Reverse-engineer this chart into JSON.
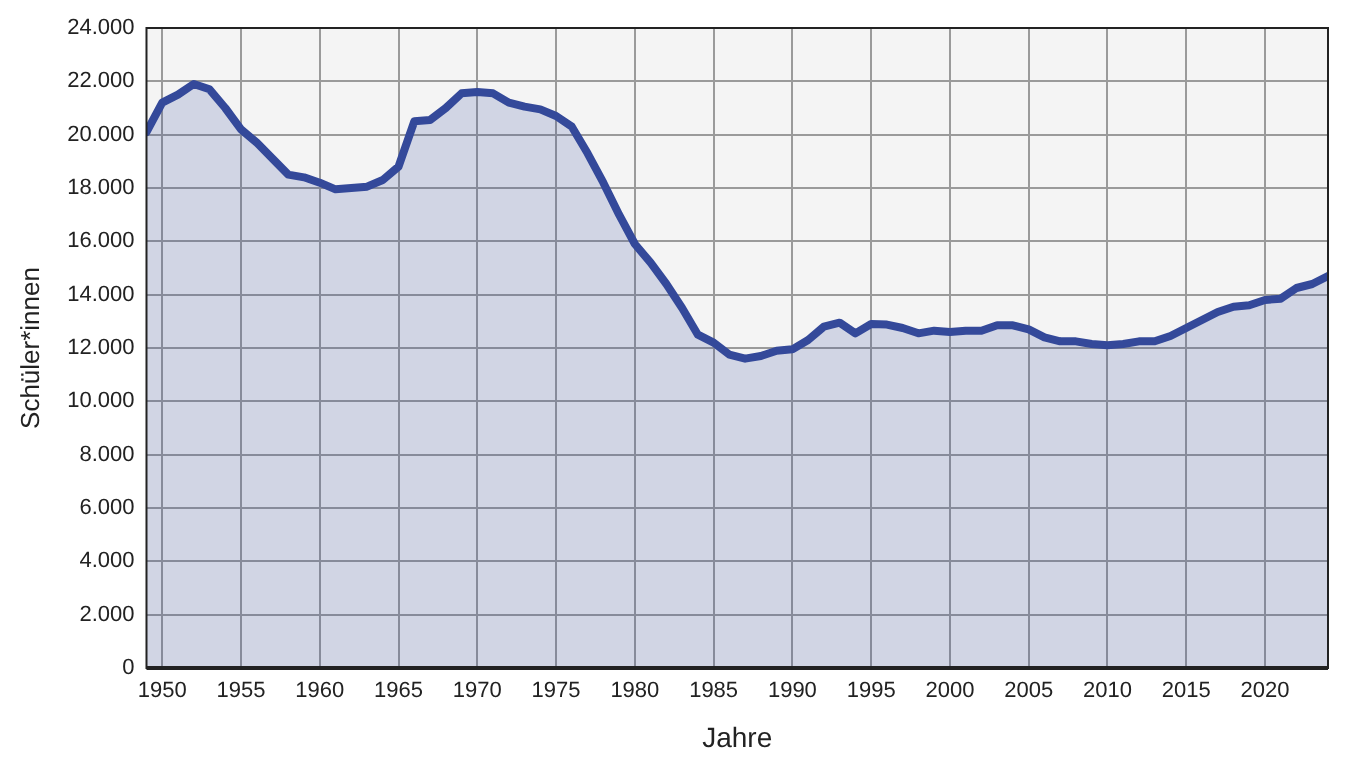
{
  "chart_data": {
    "type": "area",
    "xlabel": "Jahre",
    "ylabel": "Schüler*innen",
    "x": [
      1949,
      1950,
      1951,
      1952,
      1953,
      1954,
      1955,
      1956,
      1957,
      1958,
      1959,
      1960,
      1961,
      1962,
      1963,
      1964,
      1965,
      1966,
      1967,
      1968,
      1969,
      1970,
      1971,
      1972,
      1973,
      1974,
      1975,
      1976,
      1977,
      1978,
      1979,
      1980,
      1981,
      1982,
      1983,
      1984,
      1985,
      1986,
      1987,
      1988,
      1989,
      1990,
      1991,
      1992,
      1993,
      1994,
      1995,
      1996,
      1997,
      1998,
      1999,
      2000,
      2001,
      2002,
      2003,
      2004,
      2005,
      2006,
      2007,
      2008,
      2009,
      2010,
      2011,
      2012,
      2013,
      2014,
      2015,
      2016,
      2017,
      2018,
      2019,
      2020,
      2021,
      2022,
      2023,
      2024
    ],
    "series": [
      {
        "color": "#34499a",
        "values": [
          20100,
          21200,
          21500,
          21900,
          21700,
          21000,
          20200,
          19700,
          19100,
          18500,
          18400,
          18200,
          17950,
          18000,
          18050,
          18300,
          18800,
          20500,
          20550,
          21000,
          21550,
          21600,
          21550,
          21200,
          21050,
          20950,
          20700,
          20300,
          19300,
          18200,
          17000,
          15900,
          15200,
          14400,
          13500,
          12500,
          12200,
          11750,
          11600,
          11700,
          11900,
          11950,
          12300,
          12800,
          12950,
          12550,
          12900,
          12880,
          12750,
          12550,
          12650,
          12600,
          12650,
          12650,
          12850,
          12850,
          12700,
          12400,
          12250,
          12250,
          12150,
          12100,
          12150,
          12250,
          12250,
          12450,
          12750,
          13050,
          13350,
          13550,
          13600,
          13800,
          13850,
          14250,
          14400,
          14700
        ]
      }
    ],
    "xlim": [
      1949,
      2024
    ],
    "xticks": [
      1950,
      1955,
      1960,
      1965,
      1970,
      1975,
      1980,
      1985,
      1990,
      1995,
      2000,
      2005,
      2010,
      2015,
      2020
    ],
    "ylim": [
      0,
      24000
    ],
    "yticks": [
      0,
      {
        "value": 2000,
        "label": "2.000"
      },
      {
        "value": 4000,
        "label": "4.000"
      },
      {
        "value": 6000,
        "label": "6.000"
      },
      {
        "value": 8000,
        "label": "8.000"
      },
      {
        "value": 10000,
        "label": "10.000"
      },
      {
        "value": 12000,
        "label": "12.000"
      },
      {
        "value": 14000,
        "label": "14.000"
      },
      {
        "value": 16000,
        "label": "16.000"
      },
      {
        "value": 18000,
        "label": "18.000"
      },
      {
        "value": 20000,
        "label": "20.000"
      },
      {
        "value": 22000,
        "label": "22.000"
      },
      {
        "value": 24000,
        "label": "24.000"
      }
    ],
    "grid": true,
    "legend": false,
    "marker": "none",
    "line_style": "solid"
  }
}
